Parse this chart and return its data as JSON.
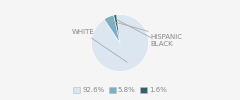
{
  "labels": [
    "WHITE",
    "HISPANIC",
    "BLACK"
  ],
  "values": [
    92.6,
    5.8,
    1.6
  ],
  "colors": [
    "#dce6f0",
    "#7bafc4",
    "#2f6070"
  ],
  "legend_labels": [
    "92.6%",
    "5.8%",
    "1.6%"
  ],
  "startangle": 97,
  "bg_color": "#f5f5f5",
  "text_color": "#888888",
  "arrow_color": "#aaaaaa",
  "font_size": 5.0,
  "legend_font_size": 5.0
}
